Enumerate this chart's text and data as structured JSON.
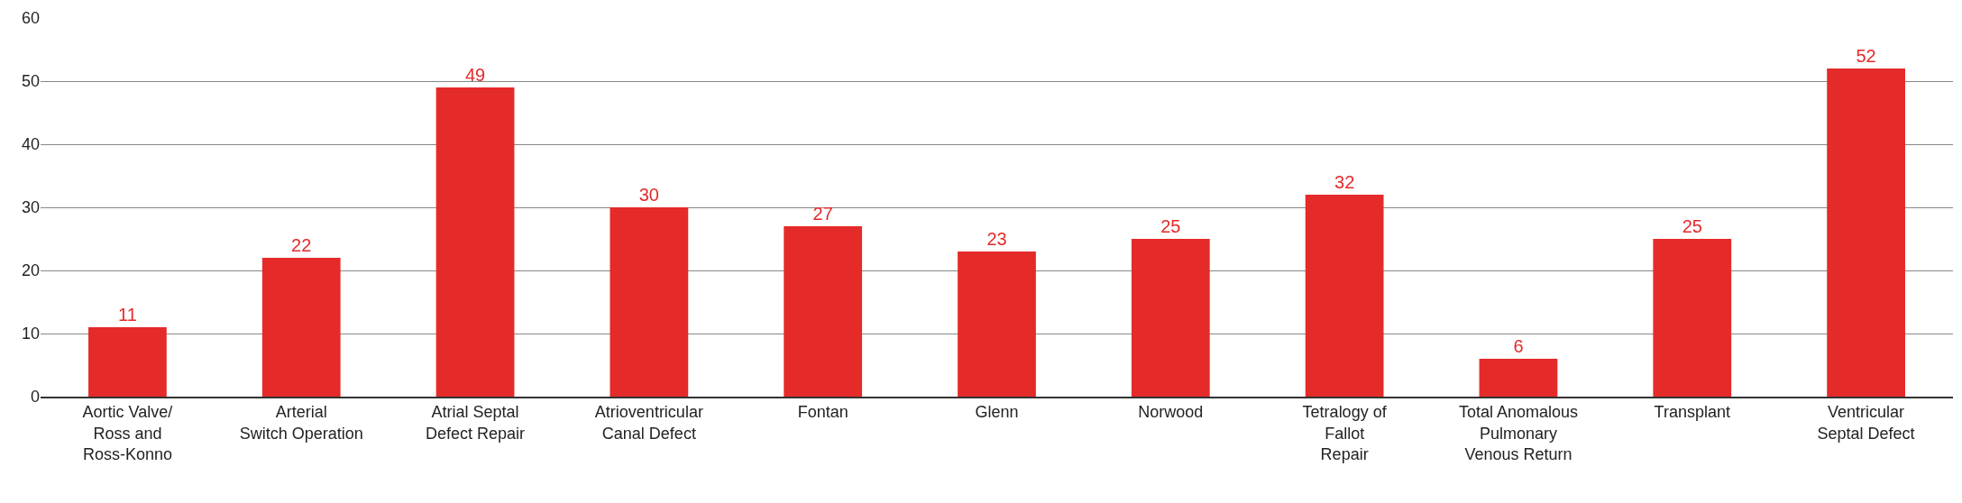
{
  "chart_data": {
    "type": "bar",
    "categories": [
      "Aortic Valve/\nRoss and\nRoss-Konno",
      "Arterial\nSwitch Operation",
      "Atrial Septal\nDefect Repair",
      "Atrioventricular\nCanal Defect",
      "Fontan",
      "Glenn",
      "Norwood",
      "Tetralogy of\nFallot\nRepair",
      "Total Anomalous\nPulmonary\nVenous Return",
      "Transplant",
      "Ventricular\nSeptal Defect"
    ],
    "values": [
      11,
      22,
      49,
      30,
      27,
      23,
      25,
      32,
      6,
      25,
      52
    ],
    "color": "#e52a2a",
    "ylim": [
      0,
      60
    ],
    "yticks": [
      0,
      10,
      20,
      30,
      40,
      50,
      60
    ],
    "grid": "y",
    "data_labels": true
  }
}
